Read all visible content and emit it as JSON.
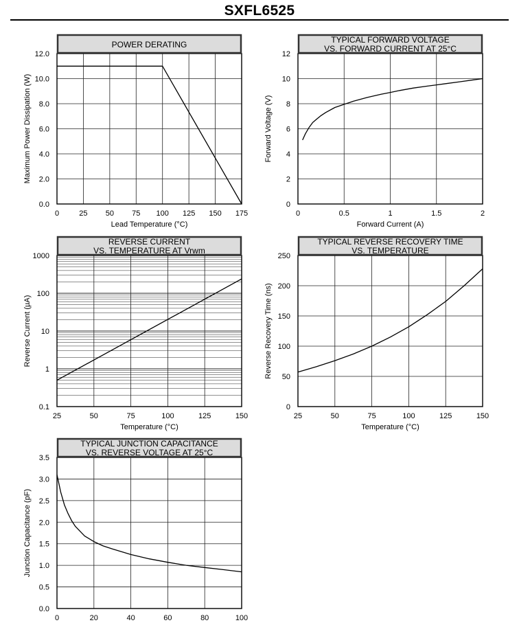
{
  "document": {
    "title": "SXFL6525"
  },
  "chart_data": [
    {
      "id": "power-derating",
      "type": "line",
      "title": "POWER DERATING",
      "xlabel": "Lead Temperature (°C)",
      "ylabel": "Maximum Power Dissipation (W)",
      "xlim": [
        0,
        175
      ],
      "ylim": [
        0,
        12
      ],
      "xticks": [
        0,
        25,
        50,
        75,
        100,
        125,
        150,
        175
      ],
      "xtick_labels": [
        "0",
        "25",
        "50",
        "75",
        "100",
        "125",
        "150",
        "175"
      ],
      "yticks": [
        0,
        2,
        4,
        6,
        8,
        10,
        12
      ],
      "ytick_labels": [
        "0.0",
        "2.0",
        "4.0",
        "6.0",
        "8.0",
        "10.0",
        "12.0"
      ],
      "ygrid": [
        0,
        2,
        4,
        6,
        8,
        10,
        12
      ],
      "grid": true,
      "series": [
        {
          "x": [
            0,
            100,
            175
          ],
          "y": [
            11,
            11,
            0
          ]
        }
      ]
    },
    {
      "id": "forward-voltage",
      "type": "line",
      "title": "TYPICAL FORWARD VOLTAGE\nVS. FORWARD CURRENT AT 25°C",
      "xlabel": "Forward Current (A)",
      "ylabel": "Forward Voltage (V)",
      "xlim": [
        0,
        2
      ],
      "ylim": [
        0,
        12
      ],
      "xticks": [
        0,
        0.5,
        1,
        1.5,
        2
      ],
      "xtick_labels": [
        "0",
        "0.5",
        "1",
        "1.5",
        "2"
      ],
      "yticks": [
        0,
        2,
        4,
        6,
        8,
        10,
        12
      ],
      "ytick_labels": [
        "0",
        "2",
        "4",
        "6",
        "8",
        "10",
        "12"
      ],
      "ygrid": [
        0,
        2,
        4,
        6,
        8,
        10,
        12
      ],
      "grid": true,
      "series": [
        {
          "x": [
            0.05,
            0.08,
            0.12,
            0.16,
            0.2,
            0.25,
            0.3,
            0.4,
            0.5,
            0.6,
            0.75,
            0.9,
            1.0,
            1.1,
            1.25,
            1.4,
            1.5,
            1.6,
            1.75,
            1.9,
            2.0
          ],
          "y": [
            5.1,
            5.6,
            6.1,
            6.5,
            6.75,
            7.05,
            7.3,
            7.7,
            7.95,
            8.2,
            8.5,
            8.75,
            8.9,
            9.05,
            9.25,
            9.4,
            9.5,
            9.6,
            9.75,
            9.9,
            10.0
          ]
        }
      ]
    },
    {
      "id": "reverse-current",
      "type": "line",
      "title": "REVERSE CURRENT\nVS. TEMPERATURE AT Vrwm",
      "xlabel": "Temperature (°C)",
      "ylabel": "Reverse Current (µA)",
      "xscale": "linear",
      "yscale": "log",
      "xlim": [
        25,
        150
      ],
      "ylim": [
        0.1,
        1000
      ],
      "xticks": [
        25,
        50,
        75,
        100,
        125,
        150
      ],
      "xtick_labels": [
        "25",
        "50",
        "75",
        "100",
        "125",
        "150"
      ],
      "yticks": [
        0.1,
        1,
        10,
        100,
        1000
      ],
      "ytick_labels": [
        "0.1",
        "1",
        "10",
        "100",
        "1000"
      ],
      "grid": true,
      "series": [
        {
          "x": [
            25,
            150
          ],
          "y": [
            0.5,
            240
          ]
        }
      ]
    },
    {
      "id": "reverse-recovery",
      "type": "line",
      "title": "TYPICAL REVERSE RECOVERY TIME\nVS. TEMPERATURE",
      "xlabel": "Temperature (°C)",
      "ylabel": "Reverse Recovery Time (ns)",
      "xlim": [
        25,
        150
      ],
      "ylim": [
        0,
        250
      ],
      "xticks": [
        25,
        50,
        75,
        100,
        125,
        150
      ],
      "xtick_labels": [
        "25",
        "50",
        "75",
        "100",
        "125",
        "150"
      ],
      "yticks": [
        0,
        50,
        100,
        150,
        200,
        250
      ],
      "ytick_labels": [
        "0",
        "50",
        "100",
        "150",
        "200",
        "250"
      ],
      "ygrid": [
        0,
        50,
        100,
        150,
        200,
        250
      ],
      "grid": true,
      "series": [
        {
          "x": [
            25,
            37.5,
            50,
            62.5,
            75,
            87.5,
            100,
            112.5,
            125,
            137.5,
            150
          ],
          "y": [
            57,
            66,
            76,
            87,
            100,
            115,
            132,
            152,
            174,
            200,
            228
          ]
        }
      ]
    },
    {
      "id": "junction-capacitance",
      "type": "line",
      "title": "TYPICAL JUNCTION CAPACITANCE\nVS. REVERSE VOLTAGE AT 25°C",
      "xlabel": "",
      "ylabel": "Junction Capacitance (pF)",
      "xlim": [
        0,
        100
      ],
      "ylim": [
        0,
        3.5
      ],
      "xticks": [
        0,
        20,
        40,
        60,
        80,
        100
      ],
      "xtick_labels": [
        "0",
        "20",
        "40",
        "60",
        "80",
        "100"
      ],
      "yticks": [
        0,
        0.5,
        1,
        1.5,
        2,
        2.5,
        3,
        3.5
      ],
      "ytick_labels": [
        "0.0",
        "0.5",
        "1.0",
        "1.5",
        "2.0",
        "2.5",
        "3.0",
        "3.5"
      ],
      "ygrid": [
        0,
        0.5,
        1,
        1.5,
        2,
        2.5,
        3,
        3.5
      ],
      "grid": true,
      "series": [
        {
          "x": [
            0,
            2,
            4,
            6,
            8,
            10,
            15,
            20,
            25,
            30,
            40,
            50,
            60,
            70,
            80,
            90,
            100
          ],
          "y": [
            3.1,
            2.7,
            2.4,
            2.2,
            2.03,
            1.9,
            1.68,
            1.55,
            1.45,
            1.38,
            1.25,
            1.15,
            1.07,
            1.0,
            0.95,
            0.9,
            0.85
          ]
        }
      ]
    }
  ]
}
